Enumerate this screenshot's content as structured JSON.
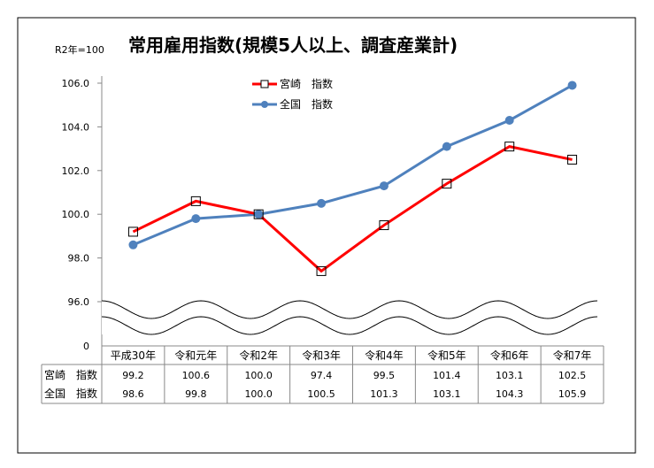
{
  "chart_data": {
    "type": "line",
    "title": "常用雇用指数(規模5人以上、調査産業計)",
    "unit_note": "R2年=100",
    "categories": [
      "平成30年",
      "令和元年",
      "令和2年",
      "令和3年",
      "令和4年",
      "令和5年",
      "令和6年",
      "令和7年"
    ],
    "ylim": [
      96,
      106
    ],
    "y_ticks": [
      "106.0",
      "104.0",
      "102.0",
      "100.0",
      "98.0",
      "96.0"
    ],
    "y_zero_label": "0",
    "axis_break": true,
    "grid": false,
    "legend_position": "top-center",
    "series": [
      {
        "name": "宮崎　指数",
        "table_label": "宮崎　指数",
        "color": "#ff0000",
        "marker": "square-open",
        "values": [
          99.2,
          100.6,
          100.0,
          97.4,
          99.5,
          101.4,
          103.1,
          102.5
        ]
      },
      {
        "name": "全国　指数",
        "table_label": "全国　指数",
        "color": "#4f81bd",
        "marker": "circle",
        "values": [
          98.6,
          99.8,
          100.0,
          100.5,
          101.3,
          103.1,
          104.3,
          105.9
        ]
      }
    ],
    "table_values": [
      [
        "99.2",
        "100.6",
        "100.0",
        "97.4",
        "99.5",
        "101.4",
        "103.1",
        "102.5"
      ],
      [
        "98.6",
        "99.8",
        "100.0",
        "100.5",
        "101.3",
        "103.1",
        "104.3",
        "105.9"
      ]
    ]
  }
}
